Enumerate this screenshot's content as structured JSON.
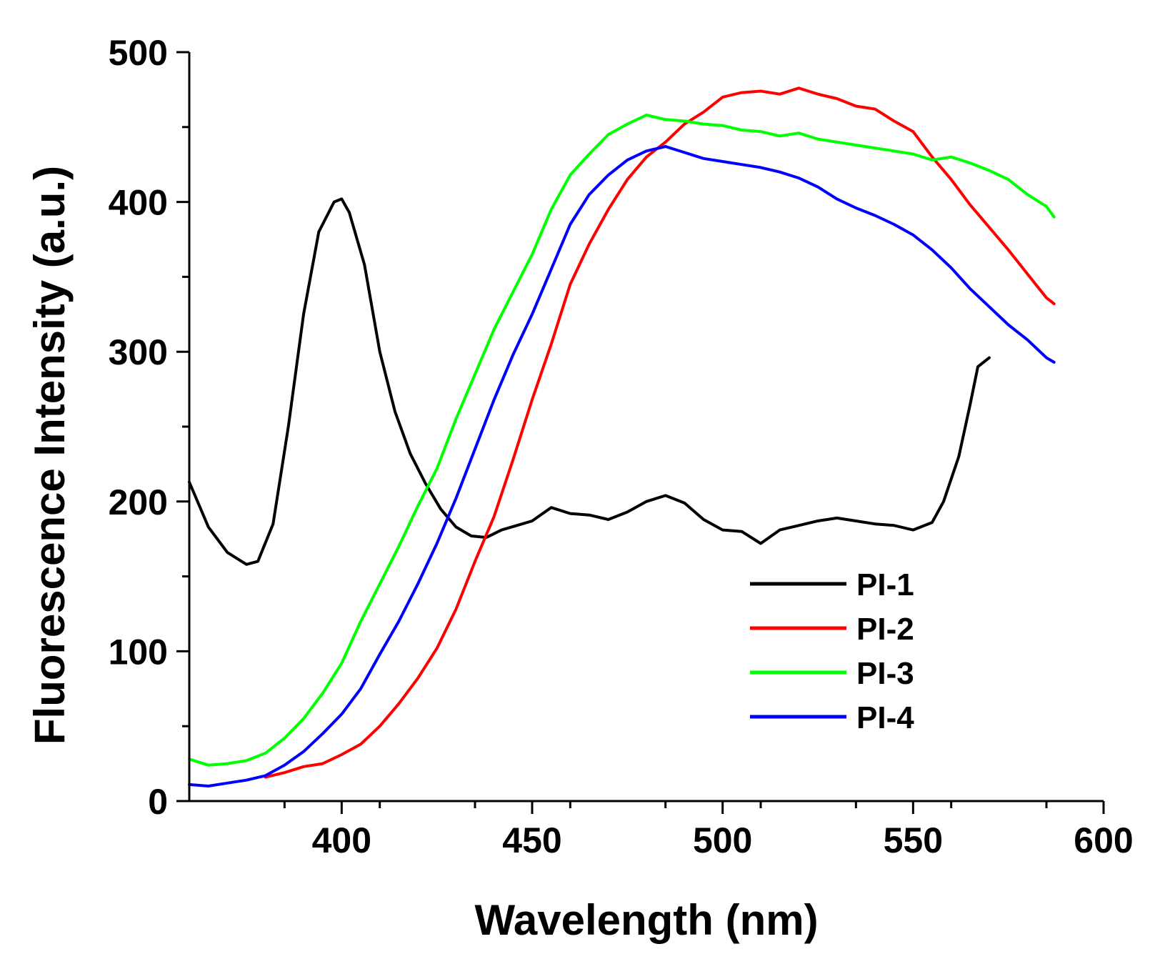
{
  "chart_data": {
    "type": "line",
    "title": "",
    "xlabel": "Wavelength (nm)",
    "ylabel": "Fluorescence Intensity (a.u.)",
    "xlim": [
      360,
      600
    ],
    "ylim": [
      0,
      500
    ],
    "x_ticks": [
      400,
      450,
      500,
      550,
      600
    ],
    "y_ticks": [
      0,
      100,
      200,
      300,
      400,
      500
    ],
    "x_minor_step": 25,
    "y_minor_step": 50,
    "grid": false,
    "legend_position": "lower-right",
    "series": [
      {
        "name": "PI-1",
        "color": "#000000",
        "x": [
          360,
          365,
          370,
          375,
          378,
          382,
          386,
          390,
          394,
          398,
          400,
          402,
          406,
          410,
          414,
          418,
          422,
          426,
          430,
          434,
          438,
          442,
          446,
          450,
          455,
          460,
          465,
          470,
          475,
          480,
          485,
          490,
          495,
          500,
          505,
          510,
          515,
          520,
          525,
          530,
          535,
          540,
          545,
          550,
          555,
          558,
          562,
          565,
          567,
          570
        ],
        "y": [
          213,
          183,
          166,
          158,
          160,
          185,
          250,
          325,
          380,
          400,
          402,
          393,
          358,
          300,
          260,
          232,
          212,
          195,
          183,
          177,
          176,
          181,
          184,
          187,
          196,
          192,
          191,
          188,
          193,
          200,
          204,
          199,
          188,
          181,
          180,
          172,
          181,
          184,
          187,
          189,
          187,
          185,
          184,
          181,
          186,
          200,
          230,
          265,
          290,
          296
        ]
      },
      {
        "name": "PI-2",
        "color": "#ff0000",
        "x": [
          380,
          385,
          390,
          395,
          400,
          405,
          410,
          415,
          420,
          425,
          430,
          435,
          440,
          445,
          450,
          455,
          460,
          465,
          470,
          475,
          480,
          485,
          490,
          495,
          500,
          505,
          510,
          515,
          520,
          525,
          530,
          535,
          540,
          545,
          550,
          555,
          560,
          565,
          570,
          575,
          580,
          585,
          587
        ],
        "y": [
          16,
          19,
          23,
          25,
          31,
          38,
          50,
          65,
          82,
          102,
          128,
          160,
          190,
          228,
          268,
          305,
          345,
          372,
          395,
          415,
          430,
          440,
          452,
          460,
          470,
          473,
          474,
          472,
          476,
          472,
          469,
          464,
          462,
          454,
          447,
          430,
          415,
          398,
          383,
          368,
          352,
          336,
          332
        ]
      },
      {
        "name": "PI-3",
        "color": "#00ff00",
        "x": [
          360,
          365,
          370,
          375,
          380,
          385,
          390,
          395,
          400,
          405,
          410,
          415,
          420,
          425,
          430,
          435,
          440,
          445,
          450,
          455,
          460,
          465,
          470,
          475,
          480,
          485,
          490,
          495,
          500,
          505,
          510,
          515,
          520,
          525,
          530,
          535,
          540,
          545,
          550,
          555,
          560,
          565,
          570,
          575,
          580,
          585,
          587
        ],
        "y": [
          28,
          24,
          25,
          27,
          32,
          42,
          55,
          72,
          92,
          120,
          145,
          170,
          197,
          222,
          255,
          285,
          315,
          340,
          365,
          395,
          418,
          432,
          445,
          452,
          458,
          455,
          454,
          452,
          451,
          448,
          447,
          444,
          446,
          442,
          440,
          438,
          436,
          434,
          432,
          428,
          430,
          426,
          421,
          415,
          405,
          397,
          390
        ]
      },
      {
        "name": "PI-4",
        "color": "#0000ff",
        "x": [
          360,
          365,
          370,
          375,
          380,
          385,
          390,
          395,
          400,
          405,
          410,
          415,
          420,
          425,
          430,
          435,
          440,
          445,
          450,
          455,
          460,
          465,
          470,
          475,
          480,
          485,
          490,
          495,
          500,
          505,
          510,
          515,
          520,
          525,
          530,
          535,
          540,
          545,
          550,
          555,
          560,
          565,
          570,
          575,
          580,
          585,
          587
        ],
        "y": [
          11,
          10,
          12,
          14,
          17,
          24,
          33,
          45,
          58,
          75,
          98,
          120,
          145,
          172,
          202,
          235,
          268,
          298,
          325,
          355,
          385,
          405,
          418,
          428,
          434,
          437,
          433,
          429,
          427,
          425,
          423,
          420,
          416,
          410,
          402,
          396,
          391,
          385,
          378,
          368,
          356,
          342,
          330,
          318,
          308,
          296,
          293
        ]
      }
    ]
  }
}
